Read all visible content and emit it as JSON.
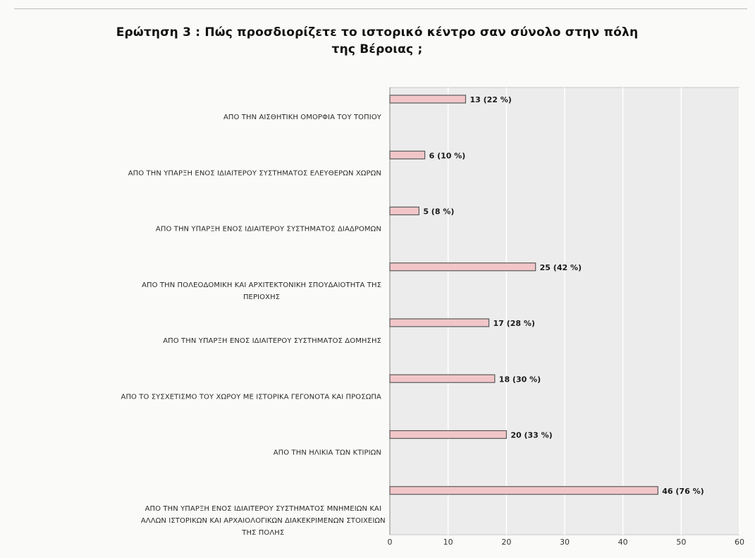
{
  "title_line1": "Ερώτηση 3 : Πώς προσδιορίζετε το ιστορικό κέντρο σαν σύνολο στην πόλη",
  "title_line2": "της Βέροιας ;",
  "colors": {
    "bar_fill": "#f2c6c8",
    "bar_stroke": "#5a5a5a",
    "plot_background": "#ececec",
    "gridline": "#ffffff"
  },
  "chart_data": {
    "type": "bar",
    "orientation": "horizontal",
    "categories": [
      [
        "ΑΠΟ ΤΗΝ ΑΙΣΘΗΤΙΚΗ ΟΜΟΡΦΙΑ ΤΟΥ ΤΟΠΙΟΥ"
      ],
      [
        "ΑΠΟ ΤΗΝ ΥΠΑΡΞΗ ΕΝΟΣ ΙΔΙΑΙΤΕΡΟΥ ΣΥΣΤΗΜΑΤΟΣ ΕΛΕΥΘΕΡΩΝ ΧΩΡΩΝ"
      ],
      [
        "ΑΠΟ ΤΗΝ ΥΠΑΡΞΗ ΕΝΟΣ ΙΔΙΑΙΤΕΡΟΥ ΣΥΣΤΗΜΑΤΟΣ ΔΙΑΔΡΟΜΩΝ"
      ],
      [
        "ΑΠΟ ΤΗΝ ΠΟΛΕΟΔΟΜΙΚΗ ΚΑΙ ΑΡΧΙΤΕΚΤΟΝΙΚΗ ΣΠΟΥΔΑΙΟΤΗΤΑ ΤΗΣ",
        "ΠΕΡΙΟΧΗΣ"
      ],
      [
        "ΑΠΟ ΤΗΝ ΥΠΑΡΞΗ ΕΝΟΣ ΙΔΙΑΙΤΕΡΟΥ ΣΥΣΤΗΜΑΤΟΣ ΔΟΜΗΣΗΣ"
      ],
      [
        "ΑΠΟ ΤΟ ΣΥΣΧΕΤΙΣΜΟ ΤΟΥ ΧΩΡΟΥ ΜΕ ΙΣΤΟΡΙΚΑ ΓΕΓΟΝΟΤΑ ΚΑΙ ΠΡΟΣΩΠΑ"
      ],
      [
        "ΑΠΟ ΤΗΝ ΗΛΙΚΙΑ ΤΩΝ ΚΤΙΡΙΩΝ"
      ],
      [
        "ΑΠΟ ΤΗΝ ΥΠΑΡΞΗ ΕΝΟΣ ΙΔΙΑΙΤΕΡΟΥ ΣΥΣΤΗΜΑΤΟΣ ΜΝΗΜΕΙΩΝ ΚΑΙ",
        "ΑΛΛΩΝ ΙΣΤΟΡΙΚΩΝ ΚΑΙ ΑΡΧΑΙΟΛΟΓΙΚΩΝ ΔΙΑΚΕΚΡΙΜΕΝΩΝ ΣΤΟΙΧΕΙΩΝ",
        "ΤΗΣ ΠΟΛΗΣ"
      ]
    ],
    "values": [
      13,
      6,
      5,
      25,
      17,
      18,
      20,
      46
    ],
    "data_labels": [
      "13 (22 %)",
      "6 (10 %)",
      "5 (8 %)",
      "25 (42 %)",
      "17 (28 %)",
      "18 (30 %)",
      "20 (33 %)",
      "46 (76 %)"
    ],
    "xlim": [
      0,
      60
    ],
    "xticks": [
      0,
      10,
      20,
      30,
      40,
      50,
      60
    ],
    "grid": true
  }
}
